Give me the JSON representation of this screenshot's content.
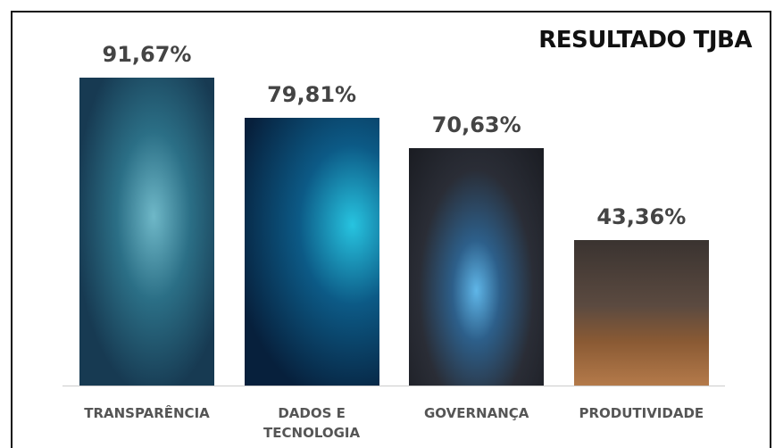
{
  "chart_data": {
    "type": "bar",
    "title": "RESULTADO TJBA",
    "categories": [
      "TRANSPARÊNCIA",
      "DADOS E TECNOLOGIA",
      "GOVERNANÇA",
      "PRODUTIVIDADE"
    ],
    "values": [
      91.67,
      79.81,
      70.63,
      43.36
    ],
    "value_labels": [
      "91,67%",
      "79,81%",
      "70,63%",
      "43,36%"
    ]
  }
}
